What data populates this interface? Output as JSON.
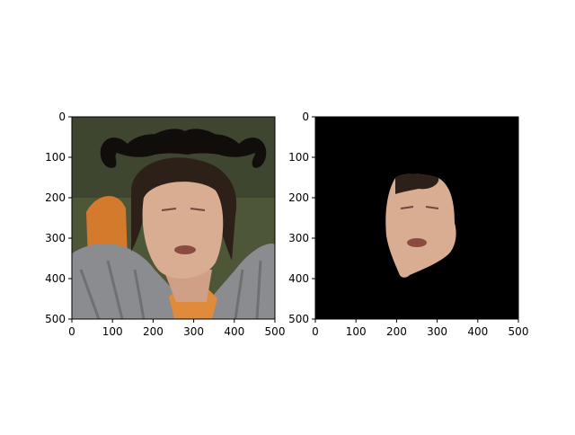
{
  "chart_data": [
    {
      "type": "image",
      "title": "",
      "xlabel": "",
      "ylabel": "",
      "xlim": [
        0,
        500
      ],
      "ylim": [
        500,
        0
      ],
      "xticks": [
        0,
        100,
        200,
        300,
        400,
        500
      ],
      "yticks": [
        0,
        100,
        200,
        300,
        400,
        500
      ],
      "xtick_labels": [
        "0",
        "100",
        "200",
        "300",
        "400",
        "500"
      ],
      "ytick_labels": [
        "0",
        "100",
        "200",
        "300",
        "400",
        "500"
      ],
      "content": "photo of a man's face and shoulders with a black mustache-shaped overlay near the top"
    },
    {
      "type": "image",
      "title": "",
      "xlabel": "",
      "ylabel": "",
      "xlim": [
        0,
        500
      ],
      "ylim": [
        500,
        0
      ],
      "xticks": [
        0,
        100,
        200,
        300,
        400,
        500
      ],
      "yticks": [
        0,
        100,
        200,
        300,
        400,
        500
      ],
      "xtick_labels": [
        "0",
        "100",
        "200",
        "300",
        "400",
        "500"
      ],
      "ytick_labels": [
        "0",
        "100",
        "200",
        "300",
        "400",
        "500"
      ],
      "content": "segmented face region on a black background"
    }
  ],
  "colors": {
    "background": "#ffffff",
    "mask_background": "#000000",
    "skin": "#d9ad92",
    "hair": "#2d2018",
    "jacket": "#8a8c90",
    "shirt": "#e08a3c",
    "photo_bg": "#4e5638",
    "mustache": "#110d0b"
  }
}
